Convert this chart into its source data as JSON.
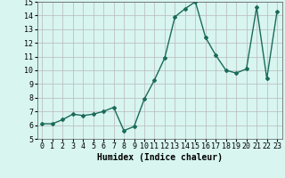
{
  "x": [
    0,
    1,
    2,
    3,
    4,
    5,
    6,
    7,
    8,
    9,
    10,
    11,
    12,
    13,
    14,
    15,
    16,
    17,
    18,
    19,
    20,
    21,
    22,
    23
  ],
  "y": [
    6.1,
    6.1,
    6.4,
    6.8,
    6.7,
    6.8,
    7.0,
    7.3,
    5.6,
    5.9,
    7.9,
    9.3,
    10.9,
    13.9,
    14.5,
    15.0,
    12.4,
    11.1,
    10.0,
    9.8,
    10.1,
    14.6,
    9.4,
    14.3
  ],
  "line_color": "#1a6b5a",
  "marker": "D",
  "marker_size": 2,
  "bg_color": "#d8f5f0",
  "grid_color": "#b8b8b8",
  "xlabel": "Humidex (Indice chaleur)",
  "xlabel_fontsize": 7,
  "ylim": [
    5,
    15
  ],
  "xlim": [
    -0.5,
    23.5
  ],
  "yticks": [
    5,
    6,
    7,
    8,
    9,
    10,
    11,
    12,
    13,
    14,
    15
  ],
  "xticks": [
    0,
    1,
    2,
    3,
    4,
    5,
    6,
    7,
    8,
    9,
    10,
    11,
    12,
    13,
    14,
    15,
    16,
    17,
    18,
    19,
    20,
    21,
    22,
    23
  ],
  "tick_fontsize": 6,
  "linewidth": 1.0
}
